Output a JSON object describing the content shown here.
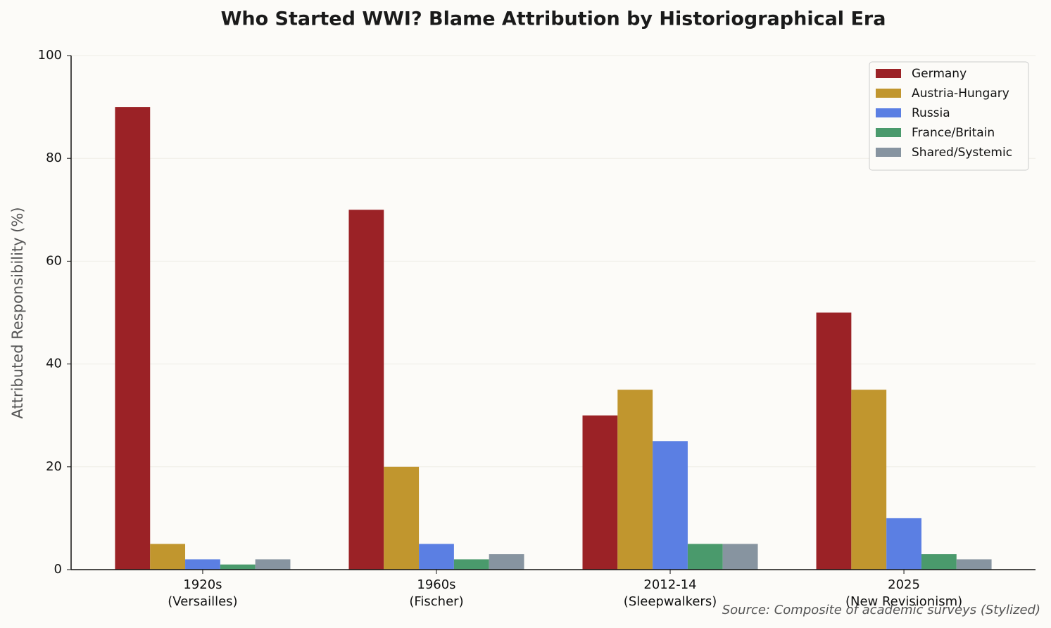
{
  "chart_data": {
    "type": "bar",
    "title": "Who Started WWI? Blame Attribution by Historiographical Era",
    "y_label": "Attributed Responsibility (%)",
    "source": "Source: Composite of academic surveys (Stylized)",
    "categories": [
      "1920s\n(Versailles)",
      "1960s\n(Fischer)",
      "2012-14\n(Sleepwalkers)",
      "2025\n(New Revisionism)"
    ],
    "series": [
      {
        "name": "Germany",
        "color": "#9b2226",
        "values": [
          90,
          70,
          30,
          50
        ]
      },
      {
        "name": "Austria-Hungary",
        "color": "#c1962e",
        "values": [
          5,
          20,
          35,
          35
        ]
      },
      {
        "name": "Russia",
        "color": "#5b7fe3",
        "values": [
          2,
          5,
          25,
          10
        ]
      },
      {
        "name": "France/Britain",
        "color": "#4a9a6c",
        "values": [
          1,
          2,
          5,
          3
        ]
      },
      {
        "name": "Shared/Systemic",
        "color": "#8794a0",
        "values": [
          2,
          3,
          5,
          2
        ]
      }
    ],
    "ylim": [
      0,
      100
    ],
    "yticks": [
      0,
      20,
      40,
      60,
      80,
      100
    ],
    "grid": true,
    "legend": "upper right"
  }
}
